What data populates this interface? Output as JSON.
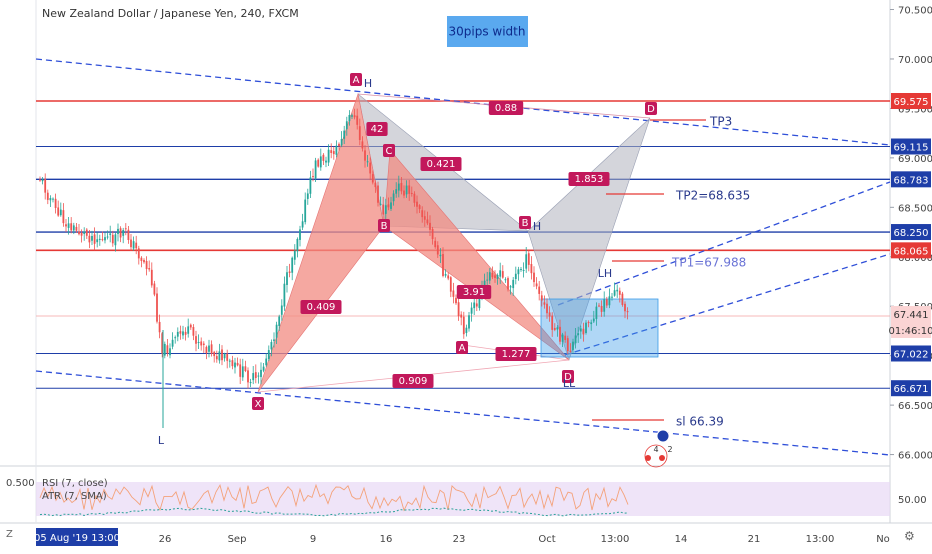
{
  "header": {
    "title": "New Zealand Dollar / Japanese Yen, 240, FXCM",
    "note_box": "30pips width"
  },
  "colors": {
    "red_line": "#e53935",
    "blue_line": "#1e3ea8",
    "navy": "#2a3a8c",
    "dashed_blue": "#2f4fd8",
    "candle_up": "#26a69a",
    "candle_down": "#ef5350",
    "pattern_red": "#f28b82",
    "pattern_grey": "#b0b3bd",
    "label_bg": "#c2185b",
    "rsi_band": "#e8d9f5"
  },
  "price_axis": {
    "ticks": [
      "70.500",
      "70.000",
      "69.500",
      "69.000",
      "68.500",
      "68.000",
      "67.500",
      "67.000",
      "66.500",
      "66.000"
    ],
    "tags": [
      {
        "text": "69.575",
        "style": "red"
      },
      {
        "text": "69.115",
        "style": "navy"
      },
      {
        "text": "68.783",
        "style": "navy"
      },
      {
        "text": "68.250",
        "style": "navy"
      },
      {
        "text": "68.065",
        "style": "red"
      },
      {
        "text": "67.441",
        "style": "light"
      },
      {
        "text": "01:46:10",
        "style": "light"
      },
      {
        "text": "67.022",
        "style": "navy"
      },
      {
        "text": "66.671",
        "style": "navy"
      }
    ]
  },
  "time_axis": {
    "ticks": [
      "26",
      "Sep",
      "9",
      "16",
      "23",
      "Oct",
      "13:00",
      "14",
      "21",
      "13:00",
      "No"
    ],
    "cursor_label": "05 Aug '19   13:00"
  },
  "indicator": {
    "rsi_label": "RSI (7, close)",
    "atr_label": "ATR (7, SMA)",
    "left_value": "0.500",
    "right_value": "50.00",
    "z_label": "Z"
  },
  "chart_data": {
    "type": "candlestick",
    "symbol": "NZDJPY",
    "timeframe": "240",
    "ylim": [
      65.9,
      70.6
    ],
    "horizontal_levels": [
      {
        "price": 69.575,
        "color": "red"
      },
      {
        "price": 69.115,
        "color": "navy"
      },
      {
        "price": 68.783,
        "color": "navy"
      },
      {
        "price": 68.25,
        "color": "navy"
      },
      {
        "price": 68.065,
        "color": "red"
      },
      {
        "price": 67.022,
        "color": "navy"
      },
      {
        "price": 66.671,
        "color": "navy"
      }
    ],
    "pattern_points": [
      {
        "label": "X",
        "price": 66.67
      },
      {
        "label": "A",
        "price": 69.64
      },
      {
        "label": "B",
        "price": 68.32
      },
      {
        "label": "C",
        "price": 69.1
      },
      {
        "label": "D",
        "price": 67.15
      }
    ],
    "ratios": [
      "0.88",
      "42",
      "0.421",
      "1.853",
      "0.409",
      "3.91",
      "1.277",
      "0.909"
    ],
    "pattern_labels": [
      "A",
      "H",
      "C",
      "B",
      "B",
      "H",
      "A",
      "D",
      "LL",
      "X",
      "D",
      "LH",
      "L"
    ],
    "annotations": [
      "TP3",
      "TP2=68.635",
      "TP1=67.988",
      "sl 66.39"
    ],
    "event_icon_labels": [
      "4",
      "2"
    ]
  }
}
